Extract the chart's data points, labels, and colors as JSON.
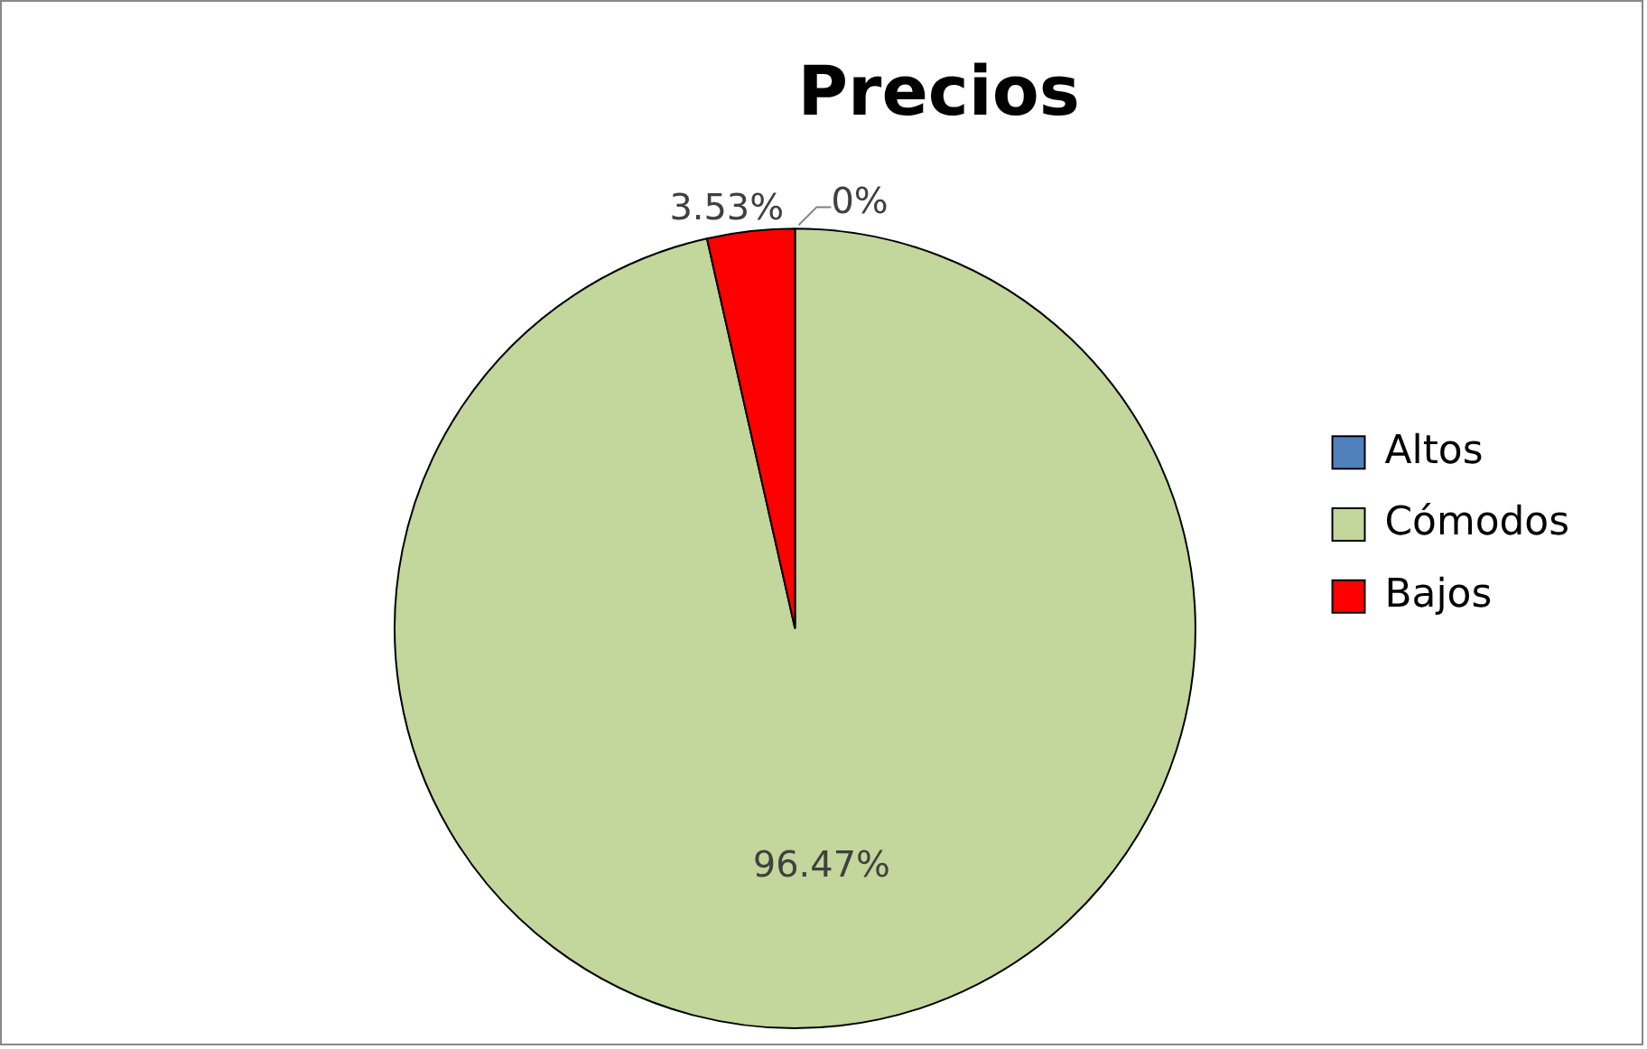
{
  "chart_data": {
    "type": "pie",
    "title": "Precios",
    "categories": [
      "Altos",
      "Cómodos",
      "Bajos"
    ],
    "values": [
      0,
      96.47,
      3.53
    ],
    "colors": [
      "#4f81bd",
      "#c3d69b",
      "#ff0000"
    ],
    "value_labels": [
      "0%",
      "96.47%",
      "3.53%"
    ],
    "legend": "right"
  }
}
